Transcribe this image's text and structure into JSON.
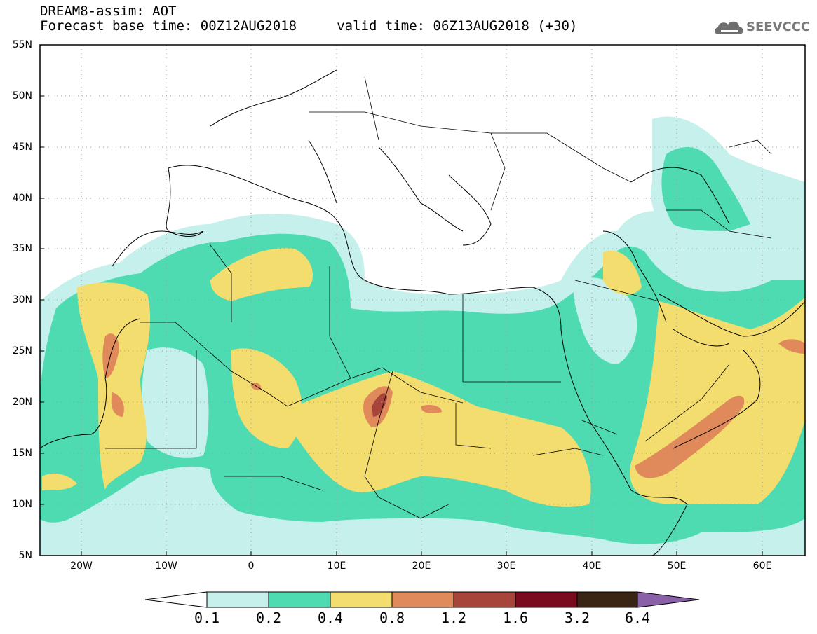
{
  "title_line1": "DREAM8-assim: AOT",
  "title_line2": "Forecast base time: 00Z12AUG2018     valid time: 06Z13AUG2018 (+30)",
  "logo_text": "SEEVCCC",
  "lat_labels": [
    "55N",
    "50N",
    "45N",
    "40N",
    "35N",
    "30N",
    "25N",
    "20N",
    "15N",
    "10N",
    "5N"
  ],
  "lon_labels": [
    "20W",
    "10W",
    "0",
    "10E",
    "20E",
    "30E",
    "40E",
    "50E",
    "60E"
  ],
  "colorbar": {
    "levels": [
      "0.1",
      "0.2",
      "0.4",
      "0.8",
      "1.2",
      "1.6",
      "3.2",
      "6.4"
    ],
    "colors": [
      "#c6f0ec",
      "#4edbb2",
      "#f3dd6f",
      "#e08a5c",
      "#a8453a",
      "#7a0a1e",
      "#3a2414",
      "#8a60a8"
    ]
  }
}
